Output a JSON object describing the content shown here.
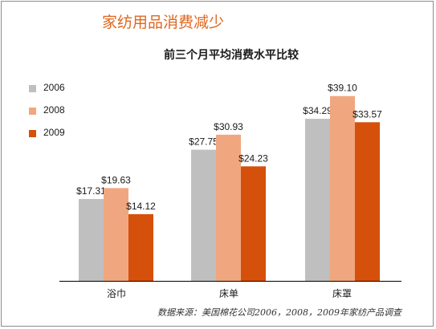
{
  "header": {
    "title": "家纺用品消费减少"
  },
  "source_note": "数据来源：美国棉花公司2006，2008，2009年家纺产品调查",
  "chart_data": {
    "type": "bar",
    "title": "前三个月平均消费水平比较",
    "categories": [
      "浴巾",
      "床单",
      "床罩"
    ],
    "series": [
      {
        "name": "2006",
        "color": "#bfbfbf",
        "values": [
          17.31,
          27.75,
          34.29
        ],
        "labels": [
          "$17.31",
          "$27.75",
          "$34.29"
        ]
      },
      {
        "name": "2008",
        "color": "#f0a77f",
        "values": [
          19.63,
          30.93,
          39.1
        ],
        "labels": [
          "$19.63",
          "$30.93",
          "$39.10"
        ]
      },
      {
        "name": "2009",
        "color": "#d5500a",
        "values": [
          14.12,
          24.23,
          33.57
        ],
        "labels": [
          "$14.12",
          "$24.23",
          "$33.57"
        ]
      }
    ],
    "ylim": [
      0,
      45
    ],
    "grid": false,
    "legend": "left"
  }
}
